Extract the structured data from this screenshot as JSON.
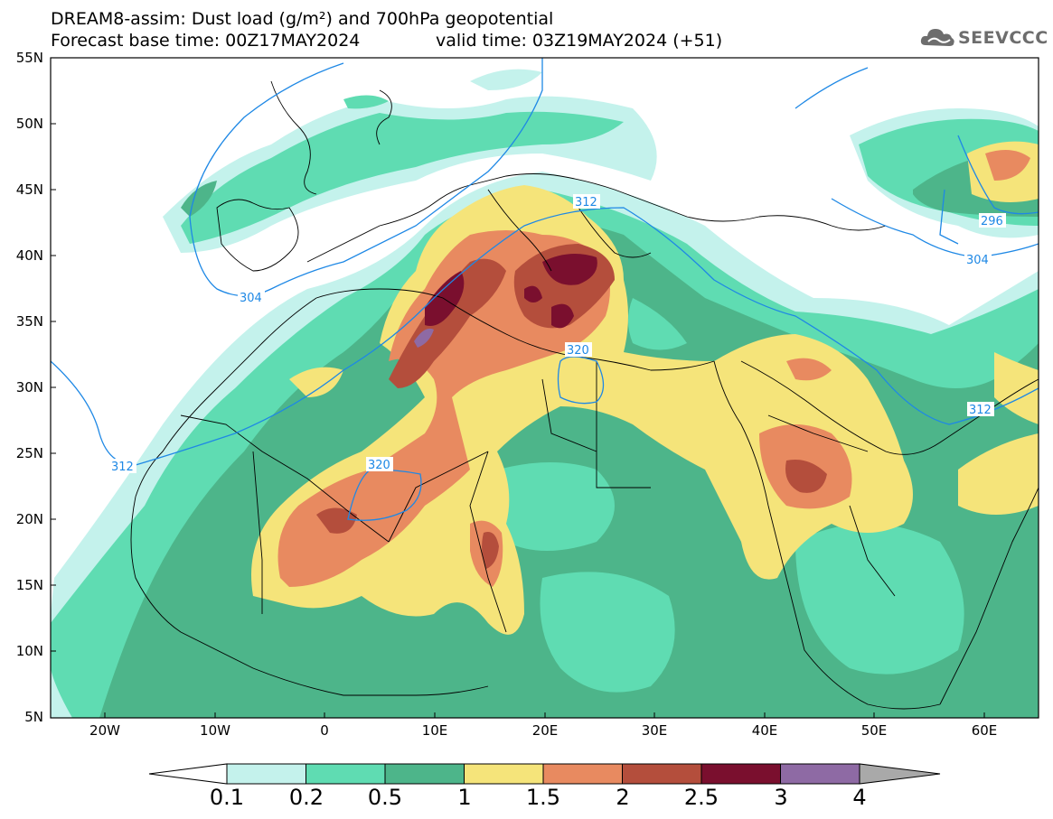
{
  "title_line1": "DREAM8-assim: Dust load (g/m²) and 700hPa geopotential",
  "title_line2": "Forecast base time: 00Z17MAY2024",
  "valid_time": "valid time: 03Z19MAY2024 (+51)",
  "logo_text": "SEEVCCC",
  "lat_ticks": [
    "55N",
    "50N",
    "45N",
    "40N",
    "35N",
    "30N",
    "25N",
    "20N",
    "15N",
    "10N",
    "5N"
  ],
  "lon_ticks": [
    "20W",
    "10W",
    "0",
    "10E",
    "20E",
    "30E",
    "40E",
    "50E",
    "60E"
  ],
  "contour_labels": [
    "312",
    "320",
    "304",
    "320",
    "312",
    "296",
    "304",
    "312"
  ],
  "colorbar": {
    "labels": [
      "0.1",
      "0.2",
      "0.5",
      "1",
      "1.5",
      "2",
      "2.5",
      "3",
      "4"
    ],
    "colors": [
      "#c4f2ec",
      "#5fdcb2",
      "#4db58a",
      "#f5e47a",
      "#e88a60",
      "#b44e3c",
      "#7a0f2e",
      "#8e6aa4",
      "#a9a9a9"
    ]
  },
  "colors": {
    "background": "#ffffff",
    "contour": "#1e88e5",
    "coast": "#000000"
  }
}
